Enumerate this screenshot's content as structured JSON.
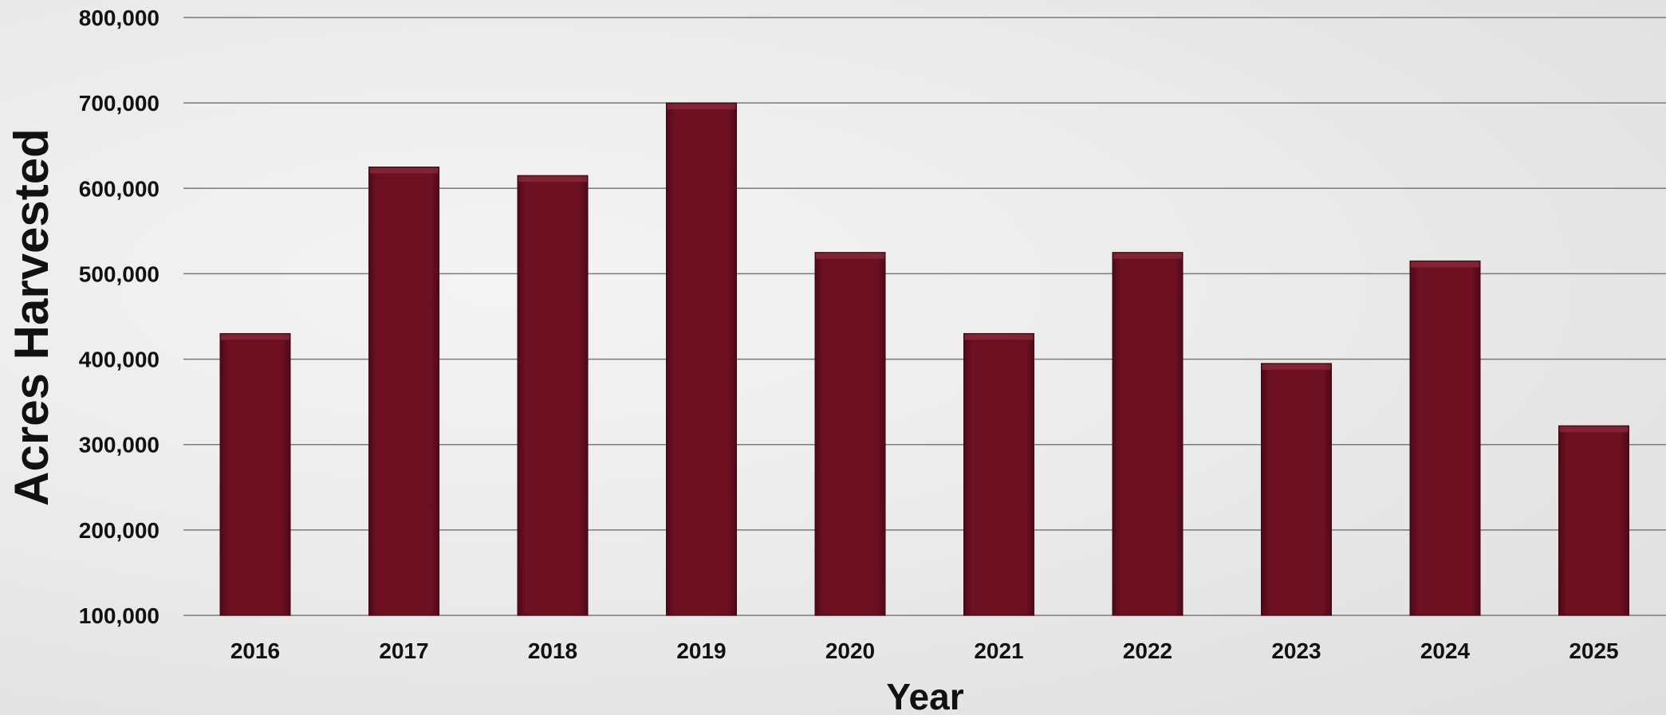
{
  "chart_data": {
    "type": "bar",
    "title": "",
    "xlabel": "Year",
    "ylabel": "Acres Harvested",
    "categories": [
      "2016",
      "2017",
      "2018",
      "2019",
      "2020",
      "2021",
      "2022",
      "2023",
      "2024",
      "2025"
    ],
    "series": [
      {
        "values": [
          430000,
          625000,
          615000,
          700000,
          525000,
          430000,
          525000,
          395000,
          515000,
          322000
        ]
      }
    ],
    "ylim": [
      100000,
      800000
    ],
    "yticks": [
      100000,
      200000,
      300000,
      400000,
      500000,
      600000,
      700000,
      800000
    ],
    "ytick_labels": [
      "100,000",
      "200,000",
      "300,000",
      "400,000",
      "500,000",
      "600,000",
      "700,000",
      "800,000"
    ],
    "grid": true,
    "legend": "none",
    "colors": {
      "bar": "#6a0f20",
      "bar_edge": "#3c0711",
      "grid": "#7a7a7a",
      "text": "#111111"
    }
  }
}
